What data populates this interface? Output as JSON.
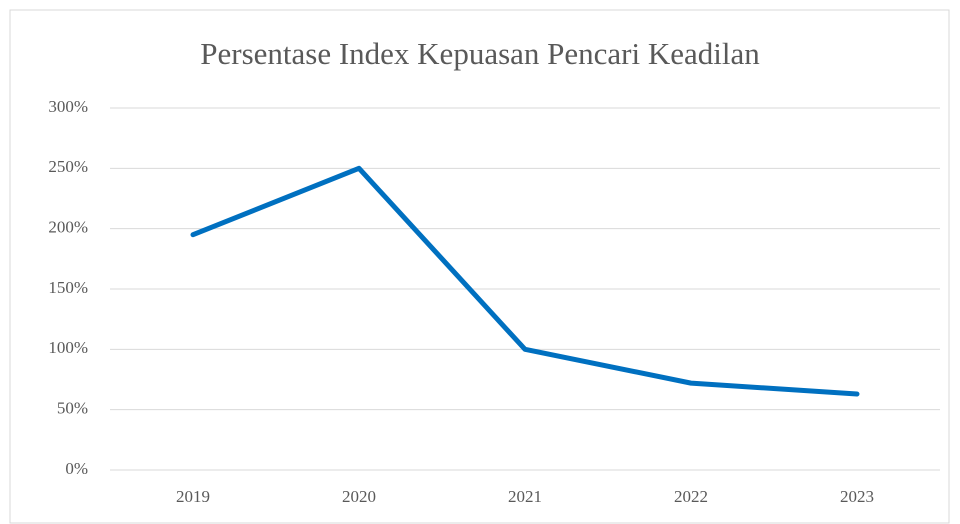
{
  "chart_data": {
    "type": "line",
    "title": "Persentase Index Kepuasan Pencari Keadilan",
    "categories": [
      "2019",
      "2020",
      "2021",
      "2022",
      "2023"
    ],
    "values": [
      195,
      250,
      100,
      72,
      63
    ],
    "color": "#0070c0",
    "ylim": [
      0,
      300
    ],
    "yticks": [
      {
        "value": 0,
        "label": "0%"
      },
      {
        "value": 50,
        "label": "50%"
      },
      {
        "value": 100,
        "label": "100%"
      },
      {
        "value": 150,
        "label": "150%"
      },
      {
        "value": 200,
        "label": "200%"
      },
      {
        "value": 250,
        "label": "250%"
      },
      {
        "value": 300,
        "label": "300%"
      }
    ],
    "grid": true
  }
}
